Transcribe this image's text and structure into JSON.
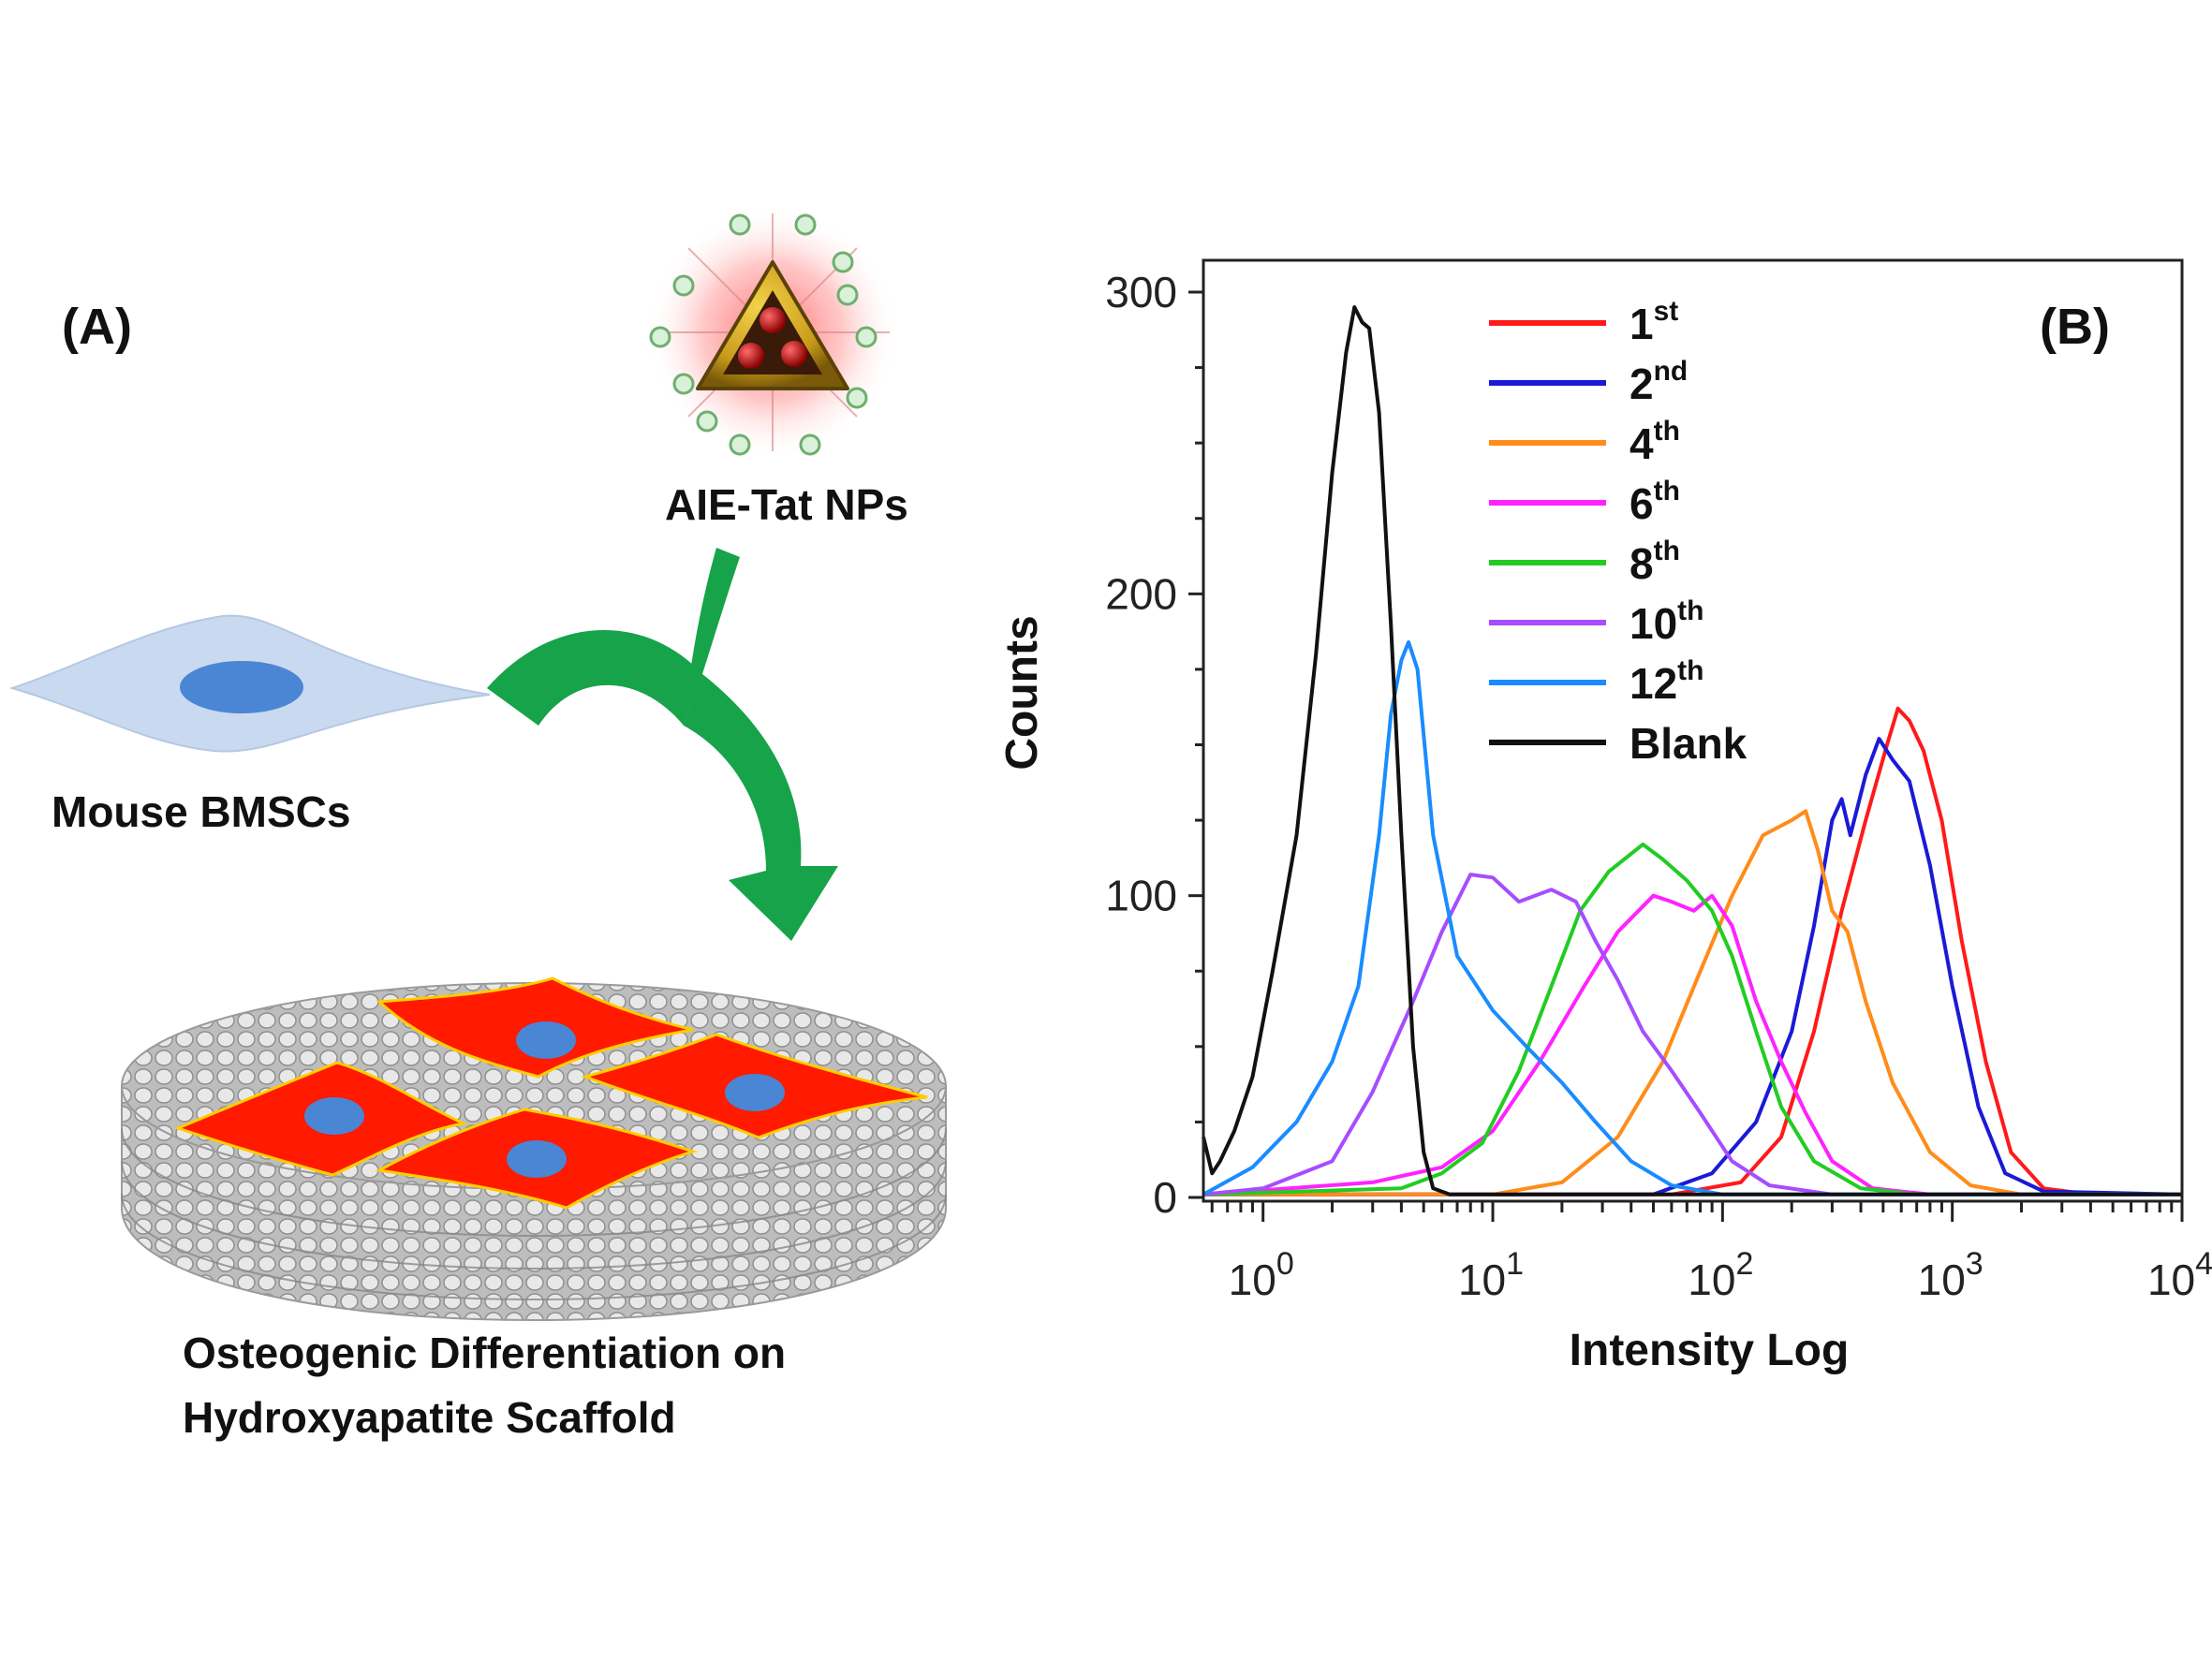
{
  "panel_a": {
    "label": "(A)",
    "nanoparticle_label": "AIE-Tat NPs",
    "cell_label": "Mouse BMSCs",
    "scaffold_caption_line1": "Osteogenic Differentiation on",
    "scaffold_caption_line2": "Hydroxyapatite Scaffold",
    "arrow_color": "#16a34a",
    "cell_color": "#c7d8ef",
    "nucleus_color": "#4a86d4",
    "differentiated_cell_color": "#ff1a00"
  },
  "panel_b": {
    "label": "(B)"
  },
  "chart_data": {
    "type": "line",
    "xlabel": "Intensity Log",
    "ylabel": "Counts",
    "x_scale": "log",
    "xlim": [
      0.55,
      10000
    ],
    "ylim": [
      0,
      300
    ],
    "y_ticks": [
      0,
      100,
      200,
      300
    ],
    "x_ticks": [
      {
        "value": 1,
        "base": "10",
        "exp": "0"
      },
      {
        "value": 10,
        "base": "10",
        "exp": "1"
      },
      {
        "value": 100,
        "base": "10",
        "exp": "2"
      },
      {
        "value": 1000,
        "base": "10",
        "exp": "3"
      },
      {
        "value": 10000,
        "base": "10",
        "exp": "4"
      }
    ],
    "legend_position": "top-center",
    "series": [
      {
        "name": "1",
        "sup": "st",
        "color": "#ff1a1a",
        "points": [
          [
            0.55,
            1
          ],
          [
            60,
            1
          ],
          [
            120,
            5
          ],
          [
            180,
            20
          ],
          [
            250,
            55
          ],
          [
            330,
            95
          ],
          [
            420,
            125
          ],
          [
            520,
            150
          ],
          [
            580,
            162
          ],
          [
            650,
            158
          ],
          [
            750,
            148
          ],
          [
            900,
            125
          ],
          [
            1100,
            85
          ],
          [
            1400,
            45
          ],
          [
            1800,
            15
          ],
          [
            2500,
            3
          ],
          [
            4000,
            1
          ],
          [
            10000,
            1
          ]
        ]
      },
      {
        "name": "2",
        "sup": "nd",
        "color": "#1a1ad6",
        "points": [
          [
            0.55,
            1
          ],
          [
            50,
            1
          ],
          [
            90,
            8
          ],
          [
            140,
            25
          ],
          [
            200,
            55
          ],
          [
            250,
            90
          ],
          [
            300,
            125
          ],
          [
            330,
            132
          ],
          [
            360,
            120
          ],
          [
            420,
            140
          ],
          [
            480,
            152
          ],
          [
            550,
            145
          ],
          [
            650,
            138
          ],
          [
            800,
            110
          ],
          [
            1000,
            70
          ],
          [
            1300,
            30
          ],
          [
            1700,
            8
          ],
          [
            2500,
            2
          ],
          [
            10000,
            1
          ]
        ]
      },
      {
        "name": "4",
        "sup": "th",
        "color": "#ff8c1a",
        "points": [
          [
            0.55,
            1
          ],
          [
            10,
            1
          ],
          [
            20,
            5
          ],
          [
            35,
            20
          ],
          [
            55,
            45
          ],
          [
            80,
            75
          ],
          [
            110,
            100
          ],
          [
            150,
            120
          ],
          [
            200,
            125
          ],
          [
            230,
            128
          ],
          [
            260,
            115
          ],
          [
            300,
            95
          ],
          [
            350,
            88
          ],
          [
            420,
            65
          ],
          [
            550,
            38
          ],
          [
            800,
            15
          ],
          [
            1200,
            4
          ],
          [
            2000,
            1
          ],
          [
            10000,
            1
          ]
        ]
      },
      {
        "name": "6",
        "sup": "th",
        "color": "#ff22ff",
        "points": [
          [
            0.55,
            1
          ],
          [
            3,
            5
          ],
          [
            6,
            10
          ],
          [
            10,
            22
          ],
          [
            16,
            45
          ],
          [
            25,
            70
          ],
          [
            35,
            88
          ],
          [
            50,
            100
          ],
          [
            60,
            98
          ],
          [
            75,
            95
          ],
          [
            90,
            100
          ],
          [
            110,
            90
          ],
          [
            140,
            65
          ],
          [
            180,
            45
          ],
          [
            230,
            28
          ],
          [
            300,
            12
          ],
          [
            450,
            3
          ],
          [
            800,
            1
          ],
          [
            10000,
            1
          ]
        ]
      },
      {
        "name": "8",
        "sup": "th",
        "color": "#22cc22",
        "points": [
          [
            0.55,
            1
          ],
          [
            4,
            3
          ],
          [
            6,
            8
          ],
          [
            9,
            18
          ],
          [
            13,
            42
          ],
          [
            18,
            70
          ],
          [
            24,
            95
          ],
          [
            32,
            108
          ],
          [
            45,
            117
          ],
          [
            55,
            112
          ],
          [
            70,
            105
          ],
          [
            90,
            95
          ],
          [
            110,
            80
          ],
          [
            140,
            55
          ],
          [
            180,
            30
          ],
          [
            250,
            12
          ],
          [
            400,
            3
          ],
          [
            700,
            1
          ],
          [
            10000,
            1
          ]
        ]
      },
      {
        "name": "10",
        "sup": "th",
        "color": "#a64dff",
        "points": [
          [
            0.55,
            1
          ],
          [
            1,
            3
          ],
          [
            2,
            12
          ],
          [
            3,
            35
          ],
          [
            4.5,
            65
          ],
          [
            6,
            88
          ],
          [
            8,
            107
          ],
          [
            10,
            106
          ],
          [
            13,
            98
          ],
          [
            18,
            102
          ],
          [
            23,
            98
          ],
          [
            28,
            85
          ],
          [
            35,
            72
          ],
          [
            45,
            55
          ],
          [
            60,
            42
          ],
          [
            80,
            28
          ],
          [
            110,
            12
          ],
          [
            160,
            4
          ],
          [
            300,
            1
          ],
          [
            10000,
            1
          ]
        ]
      },
      {
        "name": "12",
        "sup": "th",
        "color": "#1a8cff",
        "points": [
          [
            0.55,
            1
          ],
          [
            0.9,
            10
          ],
          [
            1.4,
            25
          ],
          [
            2,
            45
          ],
          [
            2.6,
            70
          ],
          [
            3.2,
            120
          ],
          [
            3.6,
            160
          ],
          [
            4,
            178
          ],
          [
            4.3,
            184
          ],
          [
            4.7,
            175
          ],
          [
            5.5,
            120
          ],
          [
            7,
            80
          ],
          [
            10,
            62
          ],
          [
            14,
            50
          ],
          [
            20,
            38
          ],
          [
            28,
            25
          ],
          [
            40,
            12
          ],
          [
            60,
            4
          ],
          [
            100,
            1
          ],
          [
            10000,
            1
          ]
        ]
      },
      {
        "name": "Blank",
        "sup": "",
        "color": "#111111",
        "points": [
          [
            0.55,
            20
          ],
          [
            0.6,
            8
          ],
          [
            0.65,
            12
          ],
          [
            0.75,
            22
          ],
          [
            0.9,
            40
          ],
          [
            1.1,
            75
          ],
          [
            1.4,
            120
          ],
          [
            1.7,
            180
          ],
          [
            2.0,
            240
          ],
          [
            2.3,
            280
          ],
          [
            2.5,
            295
          ],
          [
            2.7,
            290
          ],
          [
            2.9,
            288
          ],
          [
            3.2,
            260
          ],
          [
            3.6,
            190
          ],
          [
            4,
            120
          ],
          [
            4.5,
            50
          ],
          [
            5,
            15
          ],
          [
            5.5,
            3
          ],
          [
            6.5,
            1
          ],
          [
            10000,
            1
          ]
        ]
      }
    ]
  }
}
